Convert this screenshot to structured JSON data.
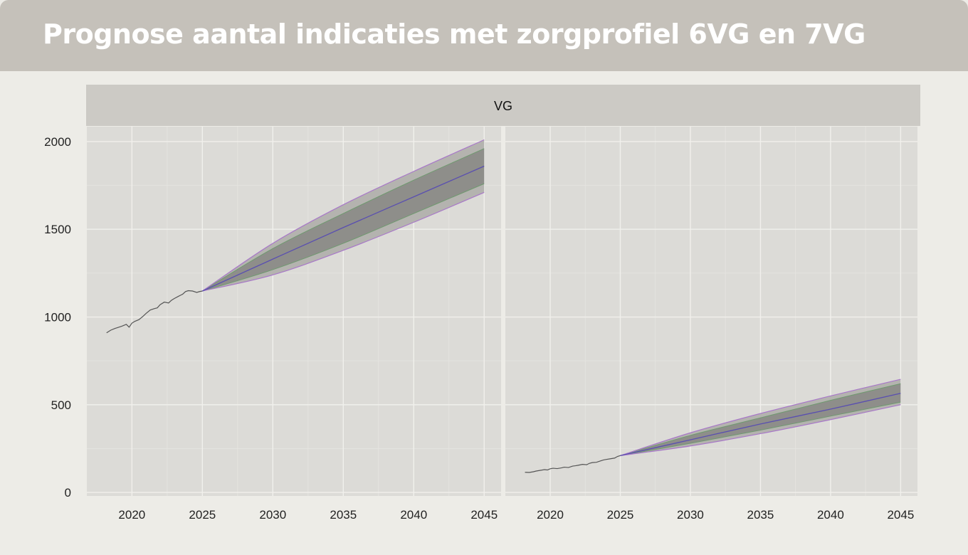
{
  "header": {
    "title": "Prognose aantal indicaties met zorgprofiel 6VG en 7VG"
  },
  "colors": {
    "title_bar": "#c5c1ba",
    "panel_bg": "#dcdbd7",
    "strip_bg": "#cccac5",
    "history_line": "#555555",
    "mean_line": "#5a4fb0",
    "inner_band": "#8e8e8a",
    "inner_band_edge": "#6f9a6f",
    "outer_band": "#b4b3af",
    "outer_band_edge": "#a878c8"
  },
  "chart_data": {
    "type": "line",
    "facet_label": "VG",
    "y_ticks": [
      0,
      500,
      1000,
      1500,
      2000
    ],
    "ylim": [
      -20,
      2085
    ],
    "x_ticks": [
      2020,
      2025,
      2030,
      2035,
      2040,
      2045
    ],
    "xlim": [
      2016.8,
      2046.2
    ],
    "panels": [
      {
        "history": {
          "x": [
            2018.2,
            2018.5,
            2018.8,
            2019.0,
            2019.3,
            2019.6,
            2019.8,
            2020.0,
            2020.2,
            2020.5,
            2020.8,
            2021.0,
            2021.3,
            2021.6,
            2021.8,
            2022.0,
            2022.3,
            2022.6,
            2022.8,
            2023.0,
            2023.3,
            2023.6,
            2023.8,
            2024.0,
            2024.3,
            2024.6,
            2024.8,
            2025.0
          ],
          "y": [
            910,
            925,
            935,
            940,
            948,
            958,
            942,
            965,
            975,
            985,
            1005,
            1020,
            1040,
            1048,
            1052,
            1070,
            1085,
            1080,
            1095,
            1105,
            1118,
            1130,
            1145,
            1150,
            1148,
            1140,
            1145,
            1148
          ]
        },
        "forecast": {
          "x": [
            2025,
            2030,
            2035,
            2040,
            2045
          ],
          "mean": [
            1148,
            1330,
            1510,
            1685,
            1860
          ],
          "inner_upper": [
            1148,
            1390,
            1590,
            1780,
            1960
          ],
          "inner_lower": [
            1148,
            1270,
            1420,
            1590,
            1760
          ],
          "outer_upper": [
            1148,
            1420,
            1640,
            1830,
            2010
          ],
          "outer_lower": [
            1148,
            1240,
            1380,
            1540,
            1710
          ]
        }
      },
      {
        "history": {
          "x": [
            2018.2,
            2018.5,
            2018.8,
            2019.0,
            2019.3,
            2019.6,
            2019.8,
            2020.0,
            2020.2,
            2020.5,
            2020.8,
            2021.0,
            2021.3,
            2021.6,
            2021.8,
            2022.0,
            2022.3,
            2022.6,
            2022.8,
            2023.0,
            2023.3,
            2023.6,
            2023.8,
            2024.0,
            2024.3,
            2024.6,
            2024.8,
            2025.0
          ],
          "y": [
            115,
            114,
            118,
            122,
            126,
            130,
            128,
            135,
            138,
            136,
            140,
            144,
            142,
            150,
            152,
            155,
            160,
            158,
            166,
            170,
            172,
            180,
            185,
            188,
            192,
            196,
            205,
            210
          ]
        },
        "forecast": {
          "x": [
            2025,
            2030,
            2035,
            2040,
            2045
          ],
          "mean": [
            210,
            300,
            390,
            475,
            565
          ],
          "inner_upper": [
            210,
            325,
            425,
            525,
            620
          ],
          "inner_lower": [
            210,
            280,
            355,
            435,
            515
          ],
          "outer_upper": [
            210,
            340,
            450,
            550,
            645
          ],
          "outer_lower": [
            210,
            265,
            335,
            415,
            500
          ]
        }
      }
    ]
  }
}
